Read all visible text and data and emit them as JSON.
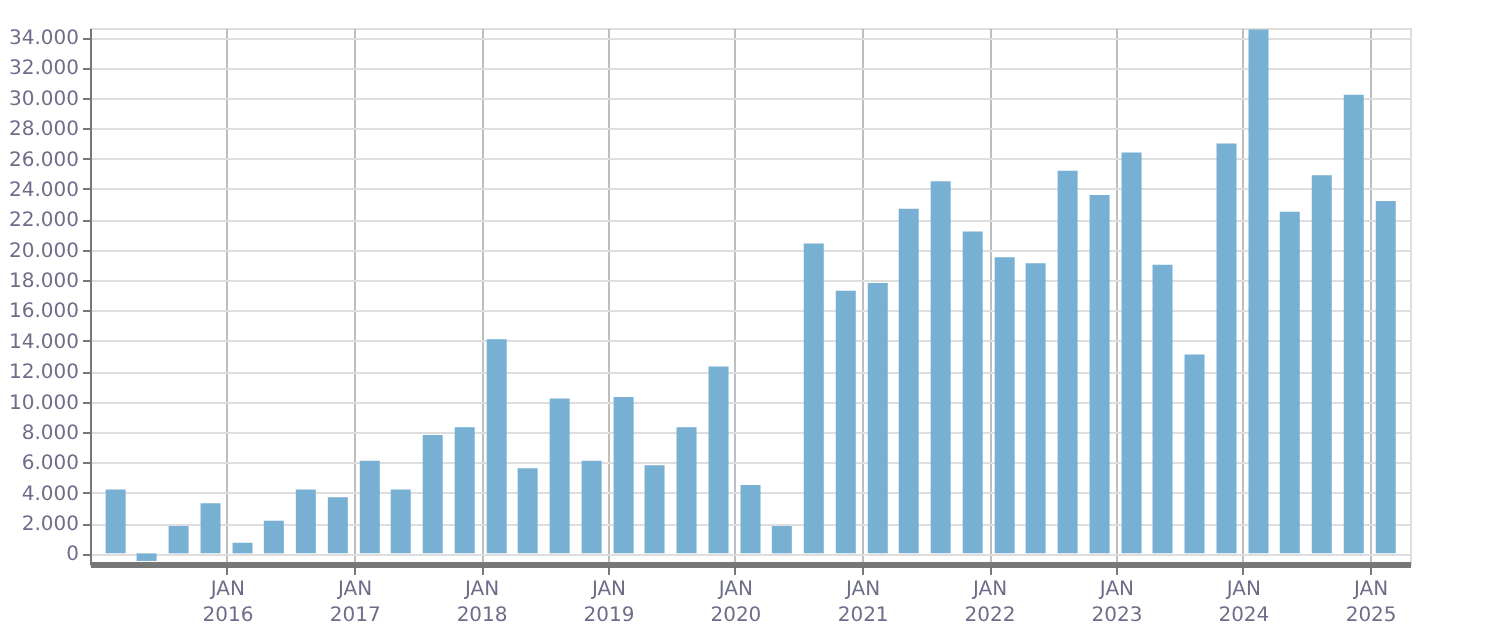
{
  "chart_data": {
    "type": "bar",
    "color": "#78b0d3",
    "x": [
      "2015-02-15",
      "2015-05-15",
      "2015-08-15",
      "2015-11-15",
      "2016-02-15",
      "2016-05-15",
      "2016-08-15",
      "2016-11-15",
      "2017-02-15",
      "2017-05-15",
      "2017-08-15",
      "2017-11-15",
      "2018-02-15",
      "2018-05-15",
      "2018-08-15",
      "2018-11-15",
      "2019-02-15",
      "2019-05-15",
      "2019-08-15",
      "2019-11-15",
      "2020-02-15",
      "2020-05-15",
      "2020-08-15",
      "2020-11-15",
      "2021-02-15",
      "2021-05-15",
      "2021-08-15",
      "2021-11-15",
      "2022-02-15",
      "2022-05-15",
      "2022-08-15",
      "2022-11-15",
      "2023-02-15",
      "2023-05-15",
      "2023-08-15",
      "2023-11-15",
      "2024-02-15",
      "2024-05-15",
      "2024-08-15",
      "2024-11-15",
      "2025-02-15"
    ],
    "values": [
      4200,
      -500,
      1800,
      3300,
      700,
      2150,
      4200,
      3700,
      6100,
      4200,
      7800,
      8300,
      14100,
      5600,
      10200,
      6100,
      10300,
      5800,
      8300,
      12300,
      4500,
      1800,
      20400,
      17300,
      17800,
      22700,
      24500,
      21200,
      19500,
      19100,
      25200,
      23600,
      26400,
      19000,
      13100,
      27000,
      34500,
      22500,
      24900,
      30200,
      23200
    ],
    "xlim": [
      "2015-01-01",
      "2025-03-28"
    ],
    "xticks": [
      {
        "value": "2016-01-01",
        "label": "JAN 2016"
      },
      {
        "value": "2017-01-01",
        "label": "JAN 2017"
      },
      {
        "value": "2018-01-01",
        "label": "JAN 2018"
      },
      {
        "value": "2019-01-01",
        "label": "JAN 2019"
      },
      {
        "value": "2020-01-01",
        "label": "JAN 2020"
      },
      {
        "value": "2021-01-01",
        "label": "JAN 2021"
      },
      {
        "value": "2022-01-01",
        "label": "JAN 2022"
      },
      {
        "value": "2023-01-01",
        "label": "JAN 2023"
      },
      {
        "value": "2024-01-01",
        "label": "JAN 2024"
      },
      {
        "value": "2025-01-01",
        "label": "JAN 2025"
      }
    ],
    "ylim": [
      -700,
      34600
    ],
    "yticks": [
      0,
      {
        "value": 2000,
        "label": "2.000"
      },
      {
        "value": 4000,
        "label": "4.000"
      },
      {
        "value": 6000,
        "label": "6.000"
      },
      {
        "value": 8000,
        "label": "8.000"
      },
      {
        "value": 10000,
        "label": "10.000"
      },
      {
        "value": 12000,
        "label": "12.000"
      },
      {
        "value": 14000,
        "label": "14.000"
      },
      {
        "value": 16000,
        "label": "16.000"
      },
      {
        "value": 18000,
        "label": "18.000"
      },
      {
        "value": 20000,
        "label": "20.000"
      },
      {
        "value": 22000,
        "label": "22.000"
      },
      {
        "value": 24000,
        "label": "24.000"
      },
      {
        "value": 26000,
        "label": "26.000"
      },
      {
        "value": 28000,
        "label": "28.000"
      },
      {
        "value": 30000,
        "label": "30.000"
      },
      {
        "value": 32000,
        "label": "32.000"
      },
      {
        "value": 34000,
        "label": "34.000"
      }
    ],
    "grid": true
  }
}
